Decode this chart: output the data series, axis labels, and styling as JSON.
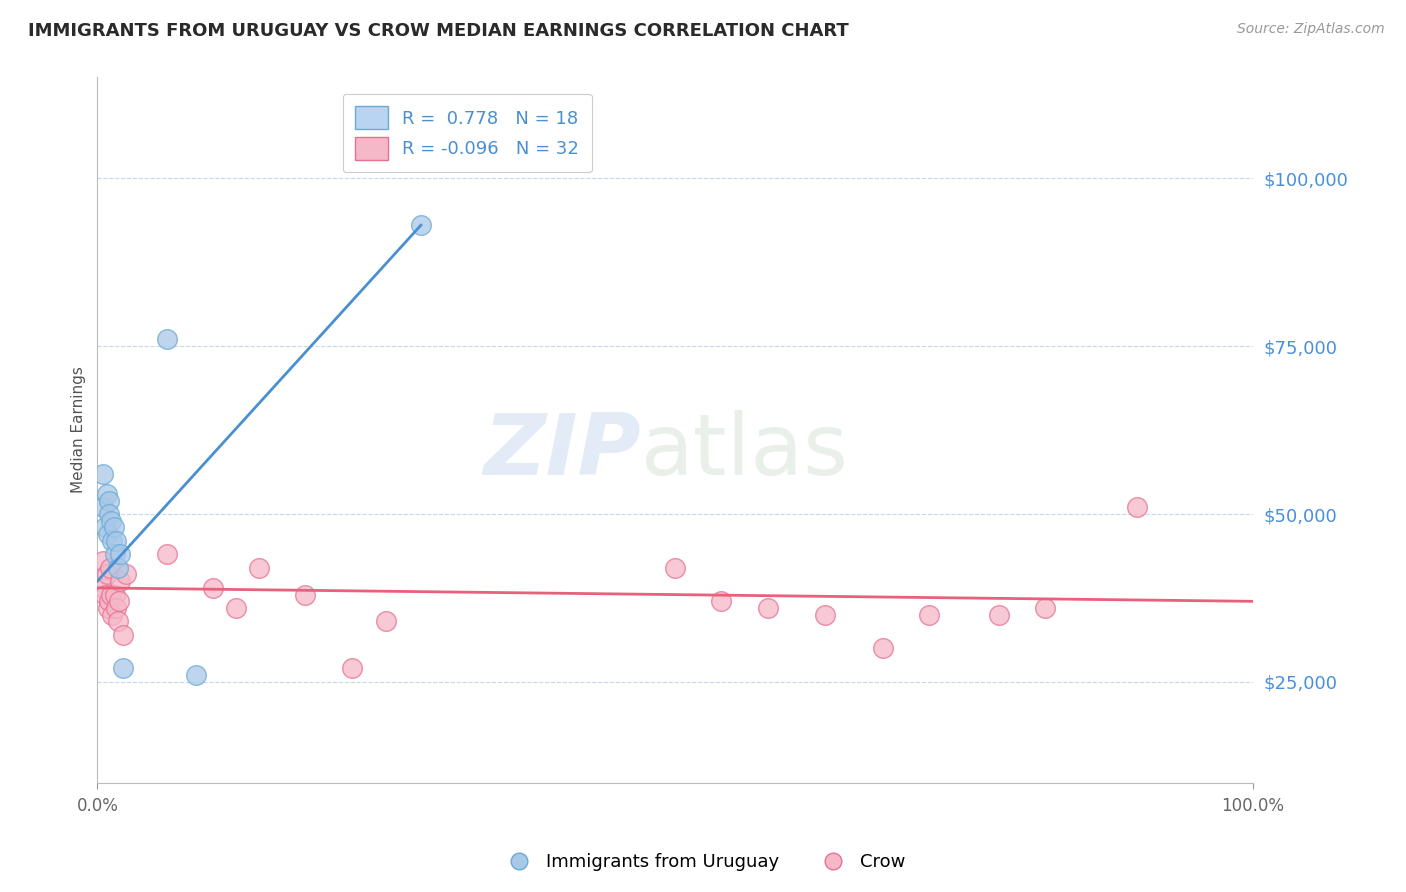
{
  "title": "IMMIGRANTS FROM URUGUAY VS CROW MEDIAN EARNINGS CORRELATION CHART",
  "source_text": "Source: ZipAtlas.com",
  "ylabel": "Median Earnings",
  "xlim": [
    0.0,
    1.0
  ],
  "ylim": [
    10000,
    115000
  ],
  "yticks": [
    25000,
    50000,
    75000,
    100000
  ],
  "ytick_labels": [
    "$25,000",
    "$50,000",
    "$75,000",
    "$100,000"
  ],
  "xtick_labels": [
    "0.0%",
    "100.0%"
  ],
  "legend_label_blue": "Immigrants from Uruguay",
  "legend_label_pink": "Crow",
  "R_blue": 0.778,
  "N_blue": 18,
  "R_pink": -0.096,
  "N_pink": 32,
  "blue_scatter_x": [
    0.005,
    0.005,
    0.007,
    0.008,
    0.009,
    0.01,
    0.01,
    0.012,
    0.013,
    0.014,
    0.015,
    0.016,
    0.018,
    0.02,
    0.022,
    0.06,
    0.085,
    0.28
  ],
  "blue_scatter_y": [
    56000,
    51000,
    48000,
    53000,
    47000,
    52000,
    50000,
    49000,
    46000,
    48000,
    44000,
    46000,
    42000,
    44000,
    27000,
    76000,
    26000,
    93000
  ],
  "pink_scatter_x": [
    0.005,
    0.006,
    0.007,
    0.008,
    0.009,
    0.01,
    0.011,
    0.012,
    0.013,
    0.015,
    0.016,
    0.018,
    0.019,
    0.02,
    0.022,
    0.025,
    0.06,
    0.1,
    0.12,
    0.14,
    0.18,
    0.22,
    0.25,
    0.5,
    0.54,
    0.58,
    0.63,
    0.68,
    0.72,
    0.78,
    0.82,
    0.9
  ],
  "pink_scatter_y": [
    43000,
    39000,
    38000,
    41000,
    36000,
    37000,
    42000,
    38000,
    35000,
    38000,
    36000,
    34000,
    37000,
    40000,
    32000,
    41000,
    44000,
    39000,
    36000,
    42000,
    38000,
    27000,
    34000,
    42000,
    37000,
    36000,
    35000,
    30000,
    35000,
    35000,
    36000,
    51000
  ],
  "blue_line_x": [
    0.0,
    0.28
  ],
  "blue_line_y": [
    40000,
    93000
  ],
  "pink_line_x": [
    0.0,
    1.0
  ],
  "pink_line_y": [
    39000,
    37000
  ],
  "blue_color": "#a8c8e8",
  "blue_edge_color": "#6aaad4",
  "blue_line_color": "#4a90d0",
  "pink_color": "#f4b8c8",
  "pink_edge_color": "#e87090",
  "pink_line_color": "#e8607a",
  "background_color": "#ffffff",
  "grid_color": "#c8d8ec",
  "title_color": "#2a2a2a",
  "axis_label_color": "#555555",
  "ytick_color": "#4a90d9",
  "watermark_zip": "ZIP",
  "watermark_atlas": "atlas",
  "legend_box_blue": "#b8d4f0",
  "legend_box_pink": "#f4b8c8"
}
